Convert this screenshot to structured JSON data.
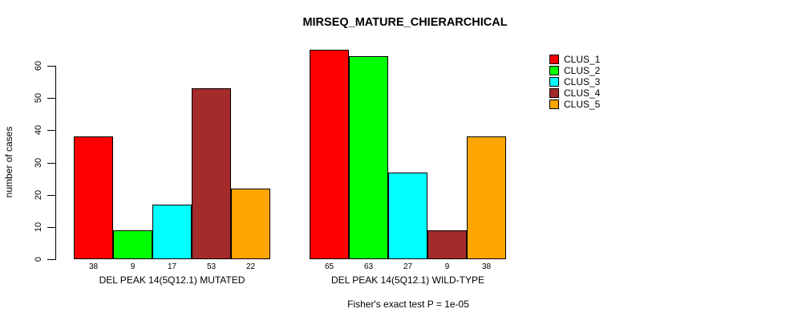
{
  "title": "MIRSEQ_MATURE_CHIERARCHICAL",
  "ylabel": "number of cases",
  "footnote": "Fisher's exact test P = 1e-05",
  "legend": {
    "items": [
      {
        "label": "CLUS_1",
        "color": "#FF0000"
      },
      {
        "label": "CLUS_2",
        "color": "#00FF00"
      },
      {
        "label": "CLUS_3",
        "color": "#00FFFF"
      },
      {
        "label": "CLUS_4",
        "color": "#A52A2A"
      },
      {
        "label": "CLUS_5",
        "color": "#FFA500"
      }
    ]
  },
  "chart_data": {
    "type": "bar",
    "title": "MIRSEQ_MATURE_CHIERARCHICAL",
    "ylabel": "number of cases",
    "xlabel": "",
    "ylim": [
      0,
      65
    ],
    "yticks": [
      0,
      10,
      20,
      30,
      40,
      50,
      60
    ],
    "grid": false,
    "legend_position": "right",
    "series_names": [
      "CLUS_1",
      "CLUS_2",
      "CLUS_3",
      "CLUS_4",
      "CLUS_5"
    ],
    "colors": [
      "#FF0000",
      "#00FF00",
      "#00FFFF",
      "#A52A2A",
      "#FFA500"
    ],
    "groups": [
      {
        "label": "DEL PEAK 14(5Q12.1) MUTATED",
        "values": [
          38,
          9,
          17,
          53,
          22
        ]
      },
      {
        "label": "DEL PEAK 14(5Q12.1) WILD-TYPE",
        "values": [
          65,
          63,
          27,
          9,
          38
        ]
      }
    ],
    "bar_value_labels_shown": true,
    "annotation": "Fisher's exact test P = 1e-05"
  }
}
